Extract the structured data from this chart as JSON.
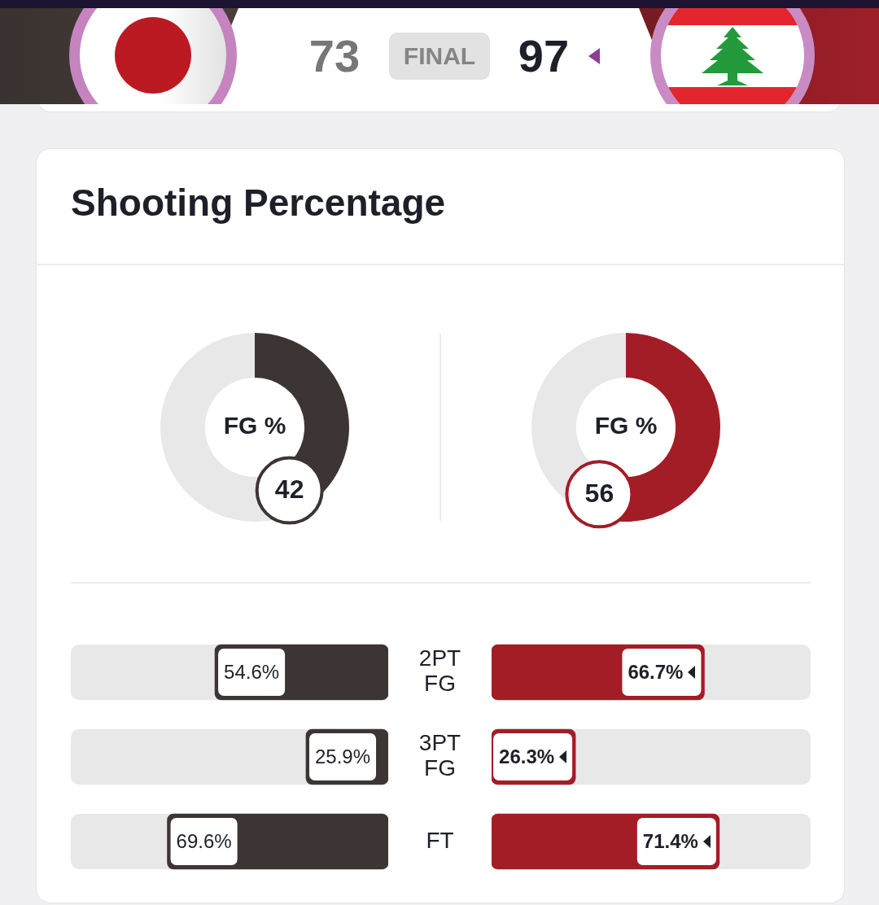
{
  "chart_data": [
    {
      "type": "other",
      "annotations": [
        "73",
        "FINAL",
        "97"
      ]
    },
    {
      "type": "other",
      "title": "Shooting Percentage"
    },
    {
      "type": "donut",
      "categories": [
        null,
        null
      ],
      "values": [
        42,
        58
      ],
      "colors": [
        "#3d3533",
        "#e8e8e8"
      ],
      "value_labels": [
        "42",
        null
      ],
      "annotations": [
        "FG %"
      ]
    },
    {
      "type": "donut",
      "categories": [
        null,
        null
      ],
      "values": [
        56,
        44
      ],
      "colors": [
        "#a31d26",
        "#e8e8e8"
      ],
      "value_labels": [
        "56",
        null
      ],
      "annotations": [
        "FG %"
      ]
    },
    {
      "type": "bar",
      "orientation": "horizontal",
      "categories": [
        "2PT FG",
        "3PT FG",
        "FT"
      ],
      "values": [
        54.6,
        25.9,
        69.6
      ],
      "color": "#3d3533",
      "value_labels": [
        "54.6%",
        "25.9%",
        "69.6%"
      ],
      "xlim": [
        100,
        0
      ],
      "tick_labels": "y"
    },
    {
      "type": "bar",
      "orientation": "horizontal",
      "categories": [
        "2PT FG",
        "3PT FG",
        "FT"
      ],
      "values": [
        66.7,
        26.3,
        71.4
      ],
      "color": "#a31d26",
      "value_labels": [
        "66.7%",
        "26.3%",
        "71.4%"
      ],
      "xlim": [
        0,
        100
      ],
      "tick_labels": false
    }
  ]
}
